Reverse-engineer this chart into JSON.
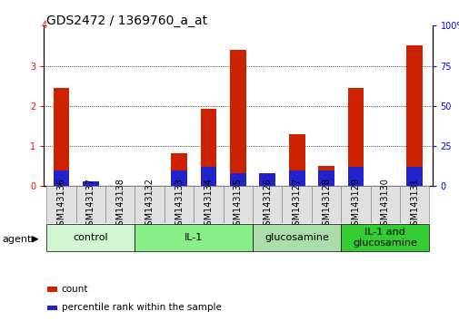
{
  "title": "GDS2472 / 1369760_a_at",
  "samples": [
    "GSM143136",
    "GSM143137",
    "GSM143138",
    "GSM143132",
    "GSM143133",
    "GSM143134",
    "GSM143135",
    "GSM143126",
    "GSM143127",
    "GSM143128",
    "GSM143129",
    "GSM143130",
    "GSM143131"
  ],
  "count_values": [
    2.45,
    0.0,
    0.0,
    0.0,
    0.82,
    1.92,
    3.4,
    0.3,
    1.3,
    0.5,
    2.45,
    0.0,
    3.52
  ],
  "percentile_raw": [
    10,
    3,
    0,
    0,
    10,
    12,
    8,
    8,
    10,
    10,
    12,
    0,
    12
  ],
  "groups": [
    {
      "label": "control",
      "start": 0,
      "end": 2,
      "color": "#d0f5d0"
    },
    {
      "label": "IL-1",
      "start": 3,
      "end": 6,
      "color": "#88ee88"
    },
    {
      "label": "glucosamine",
      "start": 7,
      "end": 9,
      "color": "#aaddaa"
    },
    {
      "label": "IL-1 and\nglucosamine",
      "start": 10,
      "end": 12,
      "color": "#33cc33"
    }
  ],
  "count_color": "#cc2200",
  "percentile_color": "#2222cc",
  "ylim_left": [
    0,
    4
  ],
  "ylim_right": [
    0,
    100
  ],
  "yticks_left": [
    0,
    1,
    2,
    3,
    4
  ],
  "yticks_right": [
    0,
    25,
    50,
    75,
    100
  ],
  "bar_width": 0.55,
  "plot_bg_color": "#ffffff",
  "title_fontsize": 10,
  "tick_fontsize": 7,
  "legend_fontsize": 7.5,
  "group_label_fontsize": 8
}
